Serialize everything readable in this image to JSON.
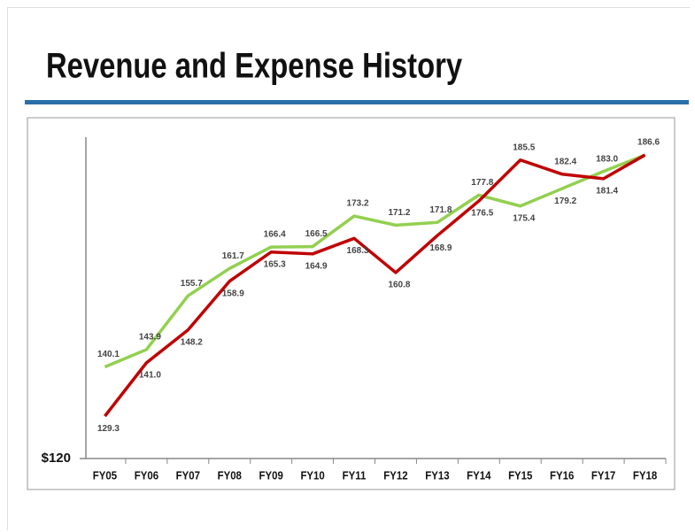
{
  "chart_data": {
    "type": "line",
    "title": "Revenue and Expense History",
    "categories": [
      "FY05",
      "FY06",
      "FY07",
      "FY08",
      "FY09",
      "FY10",
      "FY11",
      "FY12",
      "FY13",
      "FY14",
      "FY15",
      "FY16",
      "FY17",
      "FY18"
    ],
    "series": [
      {
        "color": "#92d050",
        "values": [
          140.1,
          143.9,
          155.7,
          161.7,
          166.4,
          166.5,
          173.2,
          171.2,
          171.8,
          177.8,
          175.4,
          179.2,
          183.0,
          186.6
        ],
        "value_labels": [
          "140.1",
          "143.9",
          "155.7",
          "161.7",
          "166.4",
          "166.5",
          "173.2",
          "171.2",
          "171.8",
          "177.8",
          "175.4",
          "179.2",
          "183.0",
          "186.6"
        ]
      },
      {
        "color": "#c00000",
        "values": [
          129.3,
          141.0,
          148.2,
          158.9,
          165.3,
          164.9,
          168.3,
          160.8,
          168.9,
          176.5,
          185.5,
          182.4,
          181.4,
          186.6
        ],
        "value_labels": [
          "129.3",
          "141.0",
          "148.2",
          "158.9",
          "165.3",
          "164.9",
          "168.3",
          "160.8",
          "168.9",
          "176.5",
          "185.5",
          "182.4",
          "181.4",
          "186.6"
        ]
      }
    ],
    "ylim": [
      120,
      190.5
    ],
    "yticks": [
      {
        "value": 120,
        "label": "$120"
      }
    ]
  }
}
